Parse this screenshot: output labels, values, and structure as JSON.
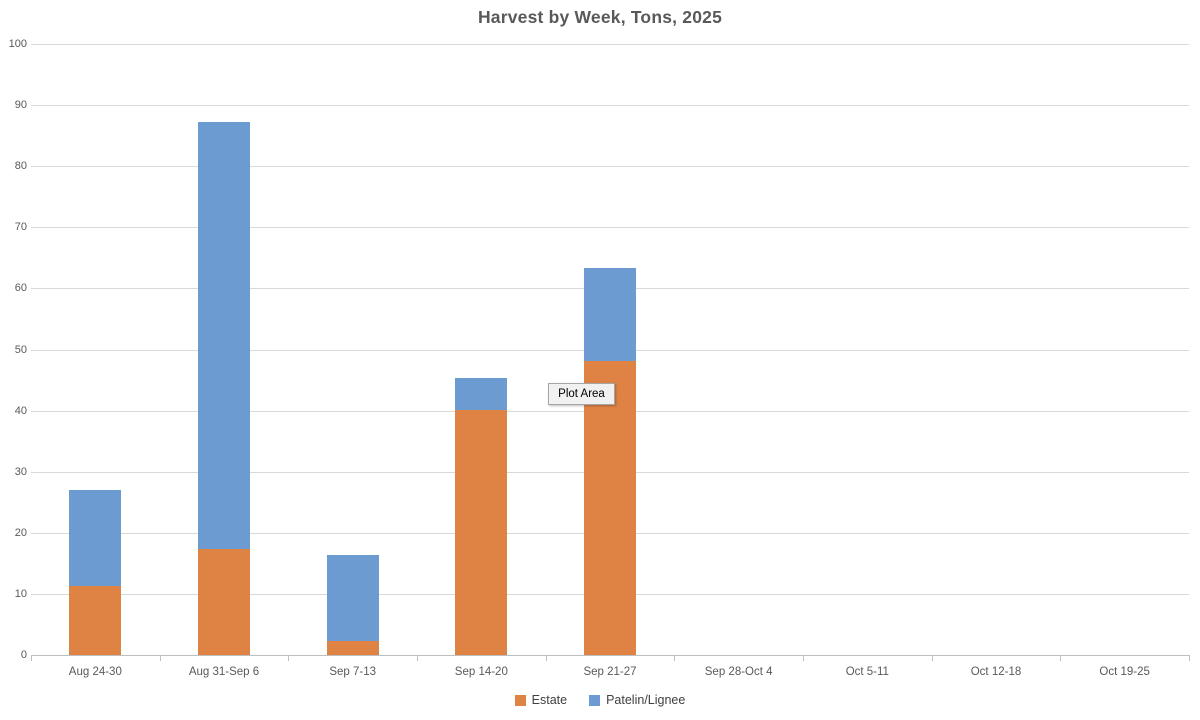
{
  "title": "Harvest by Week, Tons, 2025",
  "tooltip": {
    "label": "Plot Area"
  },
  "colors": {
    "estate": "#DE8344",
    "patelin": "#6C9BD2",
    "gridline": "#D9D9D9",
    "axis": "#BFBFBF",
    "text": "#595959",
    "legend_text": "#404040",
    "tooltip_bg": "#F1F1F1",
    "tooltip_border": "#A6A6A6"
  },
  "chart_data": {
    "type": "bar",
    "stacked": true,
    "title": "Harvest by Week, Tons, 2025",
    "categories": [
      "Aug 24-30",
      "Aug 31-Sep 6",
      "Sep 7-13",
      "Sep 14-20",
      "Sep 21-27",
      "Sep 28-Oct 4",
      "Oct 5-11",
      "Oct 12-18",
      "Oct 19-25"
    ],
    "series": [
      {
        "name": "Estate",
        "color": "#DE8344",
        "values": [
          11.3,
          17.4,
          2.3,
          40.1,
          48.2,
          0,
          0,
          0,
          0
        ]
      },
      {
        "name": "Patelin/Lignee",
        "color": "#6C9BD2",
        "values": [
          15.7,
          69.8,
          14.0,
          5.3,
          15.2,
          0,
          0,
          0,
          0
        ]
      }
    ],
    "totals": [
      27.0,
      87.2,
      16.3,
      45.4,
      63.4,
      0,
      0,
      0,
      0
    ],
    "xlabel": "",
    "ylabel": "",
    "ylim": [
      0,
      100
    ],
    "y_ticks": [
      0,
      10,
      20,
      30,
      40,
      50,
      60,
      70,
      80,
      90,
      100
    ],
    "grid": true,
    "legend_position": "bottom"
  }
}
